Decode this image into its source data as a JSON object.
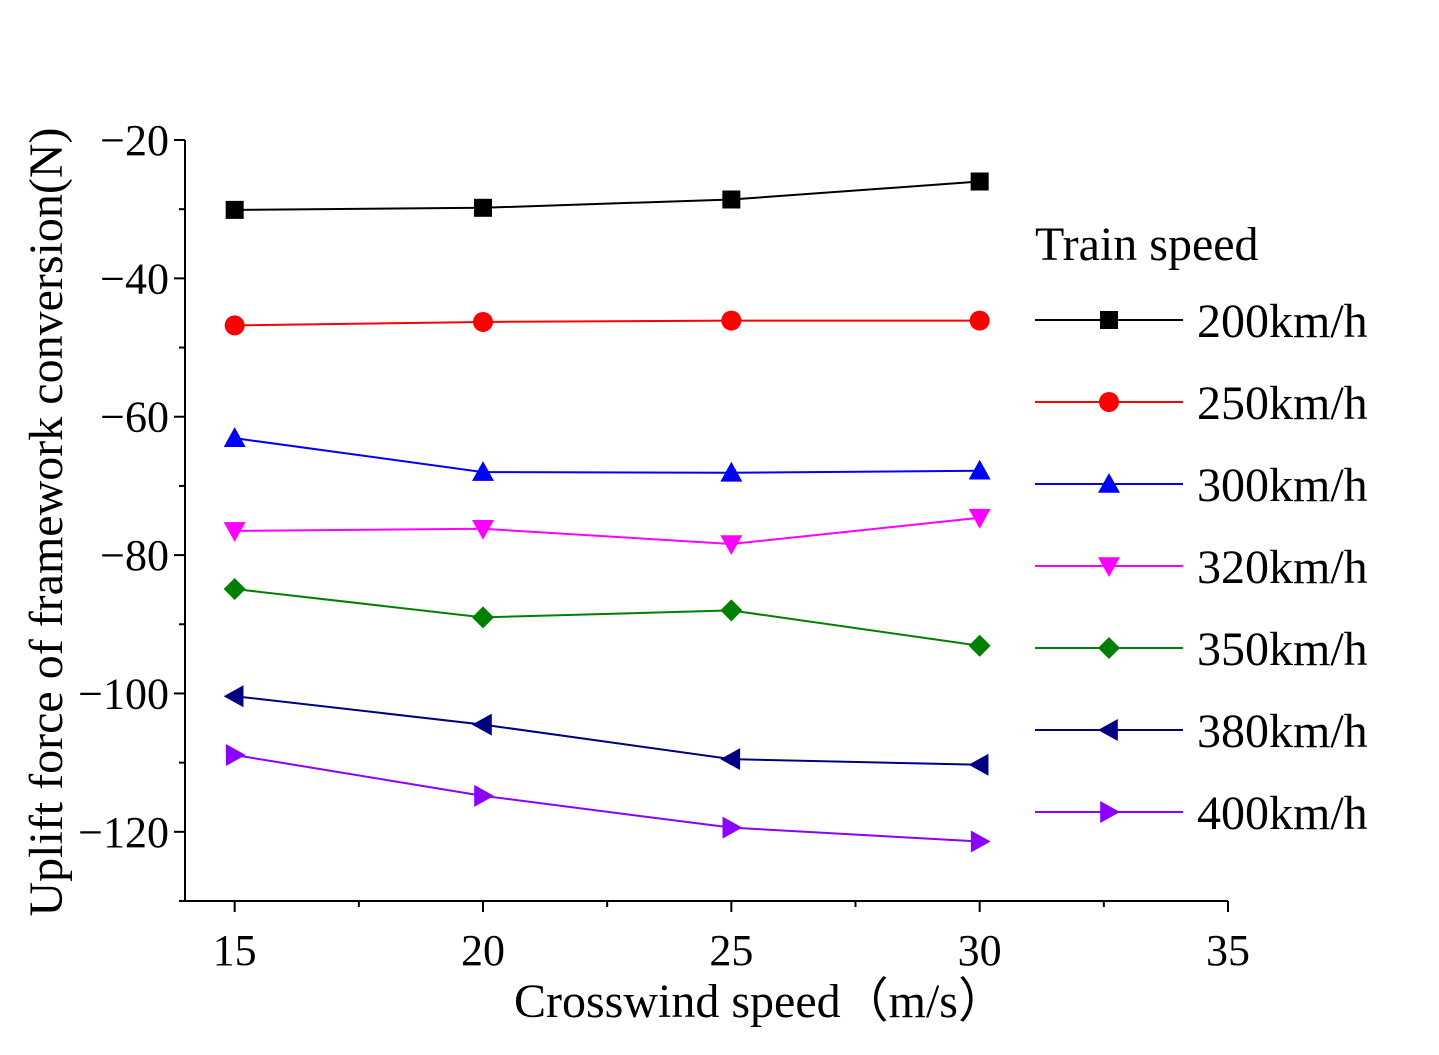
{
  "chart_data": {
    "type": "line",
    "xlabel": "Crosswind speed（m/s）",
    "ylabel": "Uplift force of framework conversion(N)",
    "xlim": [
      14,
      35
    ],
    "ylim": [
      -130,
      -20
    ],
    "xticks": [
      15,
      20,
      25,
      30,
      35
    ],
    "yticks": [
      -20,
      -40,
      -60,
      -80,
      -100,
      -120
    ],
    "x_tick_labels": [
      "15",
      "20",
      "25",
      "30",
      "35"
    ],
    "y_tick_labels": [
      "−20",
      "−40",
      "−60",
      "−80",
      "−100",
      "−120"
    ],
    "legend_title": "Train speed",
    "x": [
      15,
      20,
      25,
      30
    ],
    "series": [
      {
        "name": "200km/h",
        "values": [
          -30.1,
          -29.8,
          -28.6,
          -26.0
        ],
        "color": "#000000",
        "marker": "square"
      },
      {
        "name": "250km/h",
        "values": [
          -46.8,
          -46.3,
          -46.1,
          -46.1
        ],
        "color": "#ff0000",
        "marker": "circle"
      },
      {
        "name": "300km/h",
        "values": [
          -63.1,
          -68.0,
          -68.1,
          -67.8
        ],
        "color": "#0000ff",
        "marker": "triangle-up"
      },
      {
        "name": "320km/h",
        "values": [
          -76.5,
          -76.2,
          -78.4,
          -74.6
        ],
        "color": "#ff00ff",
        "marker": "triangle-down"
      },
      {
        "name": "350km/h",
        "values": [
          -84.9,
          -89.0,
          -88.0,
          -93.1
        ],
        "color": "#008000",
        "marker": "diamond"
      },
      {
        "name": "380km/h",
        "values": [
          -100.4,
          -104.5,
          -109.5,
          -110.3
        ],
        "color": "#000080",
        "marker": "triangle-left"
      },
      {
        "name": "400km/h",
        "values": [
          -108.9,
          -114.8,
          -119.4,
          -121.4
        ],
        "color": "#8b00ff",
        "marker": "triangle-right"
      }
    ]
  }
}
